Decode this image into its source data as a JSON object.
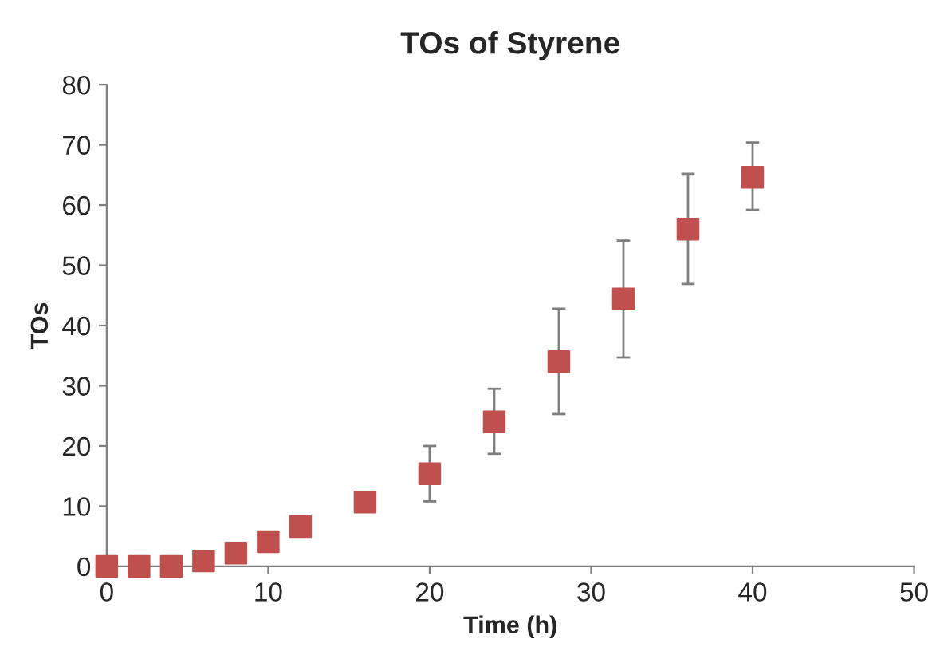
{
  "chart_data": {
    "type": "scatter",
    "title": "TOs of Styrene",
    "xlabel": "Time (h)",
    "ylabel": "TOs",
    "x": [
      0,
      2,
      4,
      6,
      8,
      10,
      12,
      16,
      20,
      24,
      28,
      32,
      36,
      40
    ],
    "series": [
      {
        "color": "#c0504d",
        "values": [
          0,
          0,
          0,
          0.9,
          2.2,
          4.1,
          6.6,
          10.7,
          15.4,
          24.0,
          34.0,
          44.4,
          56.0,
          64.6
        ],
        "errors": [
          null,
          null,
          null,
          null,
          null,
          null,
          null,
          null,
          [
            10.8,
            20.0
          ],
          [
            18.7,
            29.5
          ],
          [
            25.3,
            42.8
          ],
          [
            34.7,
            54.1
          ],
          [
            46.9,
            65.2
          ],
          [
            59.2,
            70.4
          ]
        ]
      }
    ],
    "marker": "square",
    "xlim": [
      0,
      50
    ],
    "ylim": [
      0,
      80
    ],
    "xticks": [
      0,
      10,
      20,
      30,
      40,
      50
    ],
    "yticks": [
      0,
      10,
      20,
      30,
      40,
      50,
      60,
      70,
      80
    ],
    "grid": false,
    "legend": false
  }
}
